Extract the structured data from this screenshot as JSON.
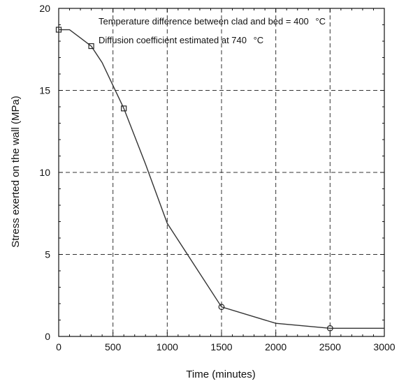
{
  "chart_data": {
    "type": "line",
    "title": "",
    "xlabel": "Time (minutes)",
    "ylabel": "Stress exerted on the wall (MPa)",
    "xlim": [
      0,
      3000
    ],
    "ylim": [
      0,
      20
    ],
    "x_ticks": [
      0,
      500,
      1000,
      1500,
      2000,
      2500,
      3000
    ],
    "y_ticks": [
      0,
      5,
      10,
      15,
      20
    ],
    "grid": true,
    "grid_style": "dashed",
    "line_color": "#333333",
    "annotations": [
      {
        "text": "Temperature difference between clad and bed = 400",
        "unit": "°C"
      },
      {
        "text": "Diffusion coefficient estimated at 740",
        "unit": "°C"
      }
    ],
    "series": [
      {
        "x": [
          0,
          100,
          200,
          300,
          400,
          600,
          800,
          1000,
          1500,
          2000,
          2500,
          3000
        ],
        "y": [
          18.7,
          18.7,
          18.2,
          17.7,
          16.7,
          13.9,
          10.5,
          6.9,
          1.8,
          0.8,
          0.5,
          0.5
        ],
        "markers": [
          {
            "x": 0,
            "y": 18.7,
            "shape": "square"
          },
          {
            "x": 300,
            "y": 17.7,
            "shape": "square"
          },
          {
            "x": 600,
            "y": 13.9,
            "shape": "square"
          },
          {
            "x": 1500,
            "y": 1.8,
            "shape": "circle"
          },
          {
            "x": 2500,
            "y": 0.5,
            "shape": "circle"
          }
        ]
      }
    ]
  }
}
